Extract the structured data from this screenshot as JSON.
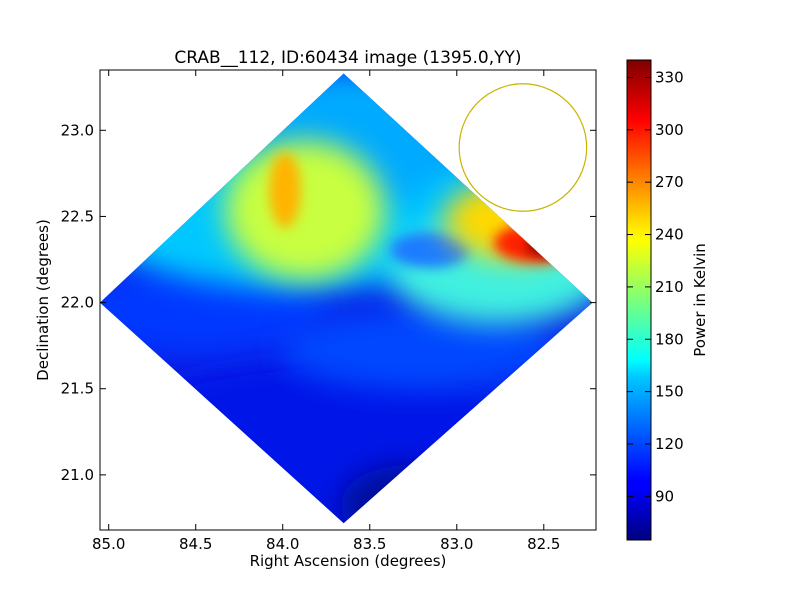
{
  "chart_data": {
    "type": "heatmap",
    "title": "CRAB__112, ID:60434 image (1395.0,YY)",
    "xlabel": "Right Ascension (degrees)",
    "ylabel": "Declination (degrees)",
    "colorbar_label": "Power in Kelvin",
    "x_axis_inverted": true,
    "xlim": [
      85.05,
      82.2
    ],
    "ylim": [
      20.68,
      23.35
    ],
    "x_ticks": [
      {
        "value": 85.0,
        "label": "85.0"
      },
      {
        "value": 84.5,
        "label": "84.5"
      },
      {
        "value": 84.0,
        "label": "84.0"
      },
      {
        "value": 83.5,
        "label": "83.5"
      },
      {
        "value": 83.0,
        "label": "83.0"
      },
      {
        "value": 82.5,
        "label": "82.5"
      }
    ],
    "y_ticks": [
      {
        "value": 21.0,
        "label": "21.0"
      },
      {
        "value": 21.5,
        "label": "21.5"
      },
      {
        "value": 22.0,
        "label": "22.0"
      },
      {
        "value": 22.5,
        "label": "22.5"
      },
      {
        "value": 23.0,
        "label": "23.0"
      }
    ],
    "colorbar": {
      "colormap": "jet",
      "range": [
        65,
        340
      ],
      "ticks": [
        {
          "value": 90,
          "label": "90"
        },
        {
          "value": 120,
          "label": "120"
        },
        {
          "value": 150,
          "label": "150"
        },
        {
          "value": 180,
          "label": "180"
        },
        {
          "value": 210,
          "label": "210"
        },
        {
          "value": 240,
          "label": "240"
        },
        {
          "value": 270,
          "label": "270"
        },
        {
          "value": 300,
          "label": "300"
        },
        {
          "value": 330,
          "label": "330"
        }
      ]
    },
    "footprint_vertices": [
      {
        "ra": 83.65,
        "dec": 23.33
      },
      {
        "ra": 82.22,
        "dec": 22.0
      },
      {
        "ra": 83.65,
        "dec": 20.72
      },
      {
        "ra": 85.05,
        "dec": 22.0
      }
    ],
    "features": [
      {
        "kind": "peak",
        "ra": 82.45,
        "dec": 22.35,
        "value": 340
      },
      {
        "kind": "local_max",
        "ra": 84.0,
        "dec": 22.65,
        "value": 265
      },
      {
        "kind": "minimum",
        "ra": 83.45,
        "dec": 20.85,
        "value": 70
      }
    ],
    "circle_marker": {
      "ra": 82.62,
      "dec": 22.9,
      "radius_deg": 0.37,
      "color": "#c8b400"
    },
    "grid": false
  }
}
